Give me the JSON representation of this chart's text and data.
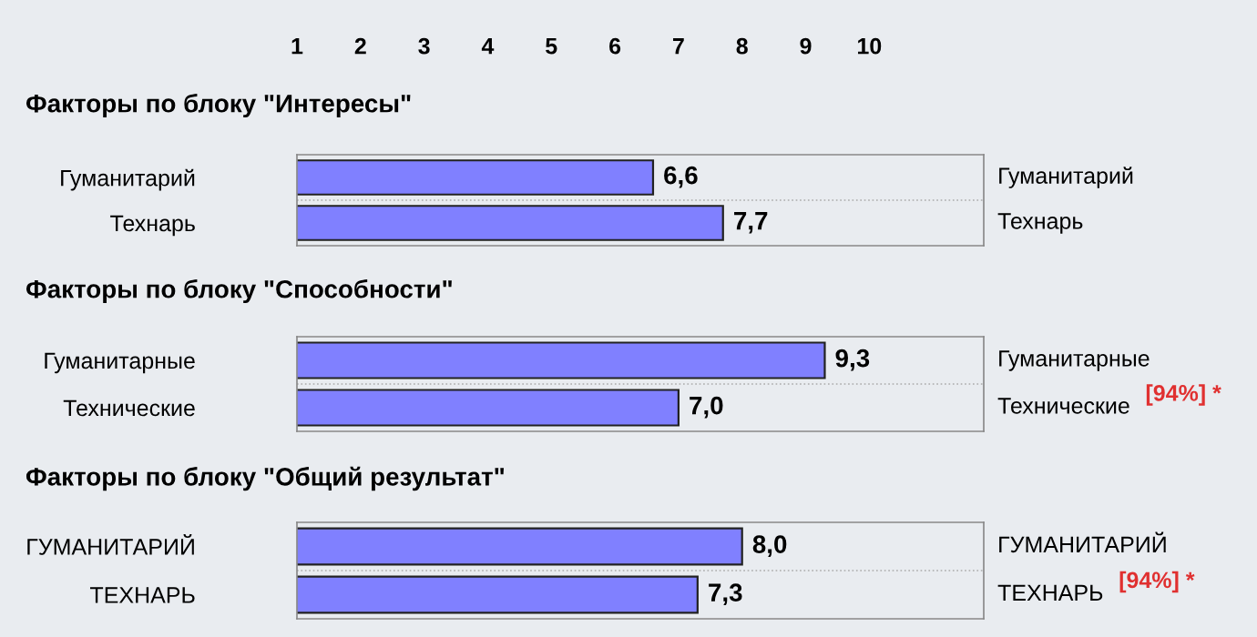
{
  "chart_data": [
    {
      "type": "bar",
      "orientation": "horizontal",
      "title": "Факторы по блоку \"Интересы\"",
      "categories": [
        "Гуманитарий",
        "Технарь"
      ],
      "values": [
        6.6,
        7.7
      ],
      "value_labels": [
        "6,6",
        "7,7"
      ],
      "color": "#8080ff",
      "xlim": [
        1,
        11.8
      ],
      "xticks": [
        1,
        2,
        3,
        4,
        5,
        6,
        7,
        8,
        9,
        10
      ],
      "grid": false,
      "legend": false,
      "annotations": [
        "Гуманитарий",
        "Технарь"
      ]
    },
    {
      "type": "bar",
      "orientation": "horizontal",
      "title": "Факторы по блоку \"Способности\"",
      "categories": [
        "Гуманитарные",
        "Технические"
      ],
      "values": [
        9.3,
        7.0
      ],
      "value_labels": [
        "9,3",
        "7,0"
      ],
      "color": "#8080ff",
      "xlim": [
        1,
        11.8
      ],
      "tick_labels": "y",
      "grid": false,
      "legend": false,
      "annotations": [
        "Гуманитарные",
        "Технические",
        "[94%] *"
      ]
    },
    {
      "type": "bar",
      "orientation": "horizontal",
      "title": "Факторы по блоку \"Общий результат\"",
      "categories": [
        "ГУМАНИТАРИЙ",
        "ТЕХНАРЬ"
      ],
      "values": [
        8.0,
        7.3
      ],
      "value_labels": [
        "8,0",
        "7,3"
      ],
      "color": "#8080ff",
      "xlim": [
        1,
        11.8
      ],
      "tick_labels": "y",
      "grid": false,
      "legend": false,
      "annotations": [
        "ГУМАНИТАРИЙ",
        "ТЕХНАРЬ",
        "[94%] *"
      ]
    }
  ]
}
